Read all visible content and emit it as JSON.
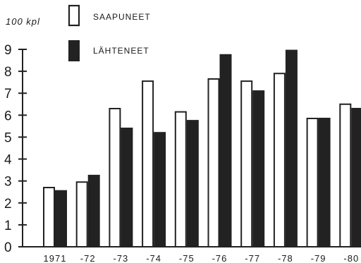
{
  "chart_data": {
    "type": "bar",
    "unit_label": "100 kpl",
    "categories": [
      "1971",
      "-72",
      "-73",
      "-74",
      "-75",
      "-76",
      "-77",
      "-78",
      "-79",
      "-80"
    ],
    "series": [
      {
        "name": "SAAPUNEET",
        "color": "#ffffff",
        "values": [
          2.7,
          2.95,
          6.3,
          7.55,
          6.15,
          7.65,
          7.55,
          7.9,
          5.85,
          6.5
        ]
      },
      {
        "name": "LÄHTENEET",
        "color": "#222222",
        "values": [
          2.55,
          3.25,
          5.4,
          5.2,
          5.75,
          8.75,
          7.1,
          8.95,
          5.85,
          6.3
        ]
      }
    ],
    "yticks": [
      0,
      1,
      2,
      3,
      4,
      5,
      6,
      7,
      8,
      9
    ],
    "ylim": [
      0,
      9
    ],
    "legend_position": "top-center",
    "grid": false
  }
}
